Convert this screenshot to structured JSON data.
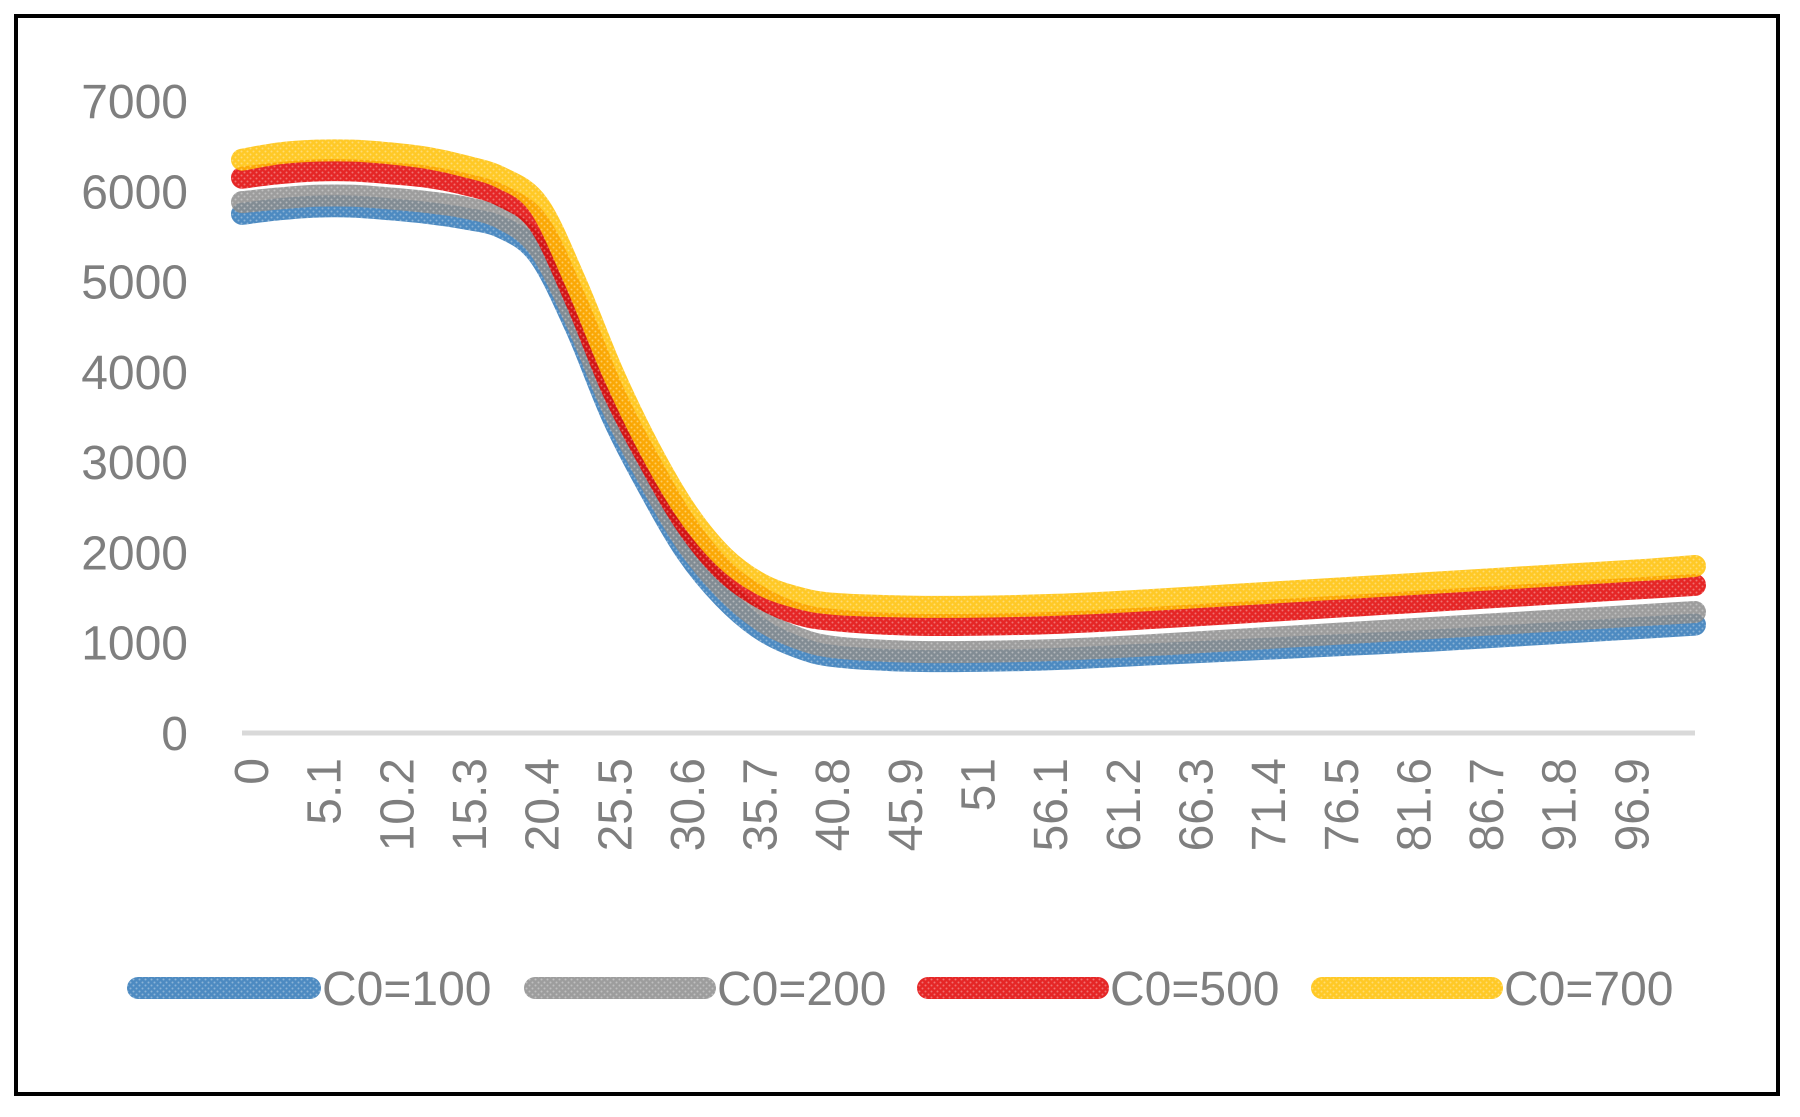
{
  "chart_data": {
    "type": "line",
    "title": "",
    "xlabel": "",
    "ylabel": "",
    "ylim": [
      0,
      7000
    ],
    "yticks": [
      0,
      1000,
      2000,
      3000,
      4000,
      5000,
      6000,
      7000
    ],
    "x_tick_labels": [
      "0",
      "5.1",
      "10.2",
      "15.3",
      "20.4",
      "25.5",
      "30.6",
      "35.7",
      "40.8",
      "45.9",
      "51",
      "56.1",
      "61.2",
      "66.3",
      "71.4",
      "76.5",
      "81.6",
      "86.7",
      "91.8",
      "96.9"
    ],
    "xlim": [
      0,
      100
    ],
    "grid": false,
    "legend_position": "bottom",
    "x": [
      0,
      2.55,
      5.1,
      7.65,
      10.2,
      12.75,
      15.3,
      17.85,
      20.4,
      22.95,
      25.5,
      28.05,
      30.6,
      33.15,
      35.7,
      38.25,
      40.8,
      45.9,
      51,
      56.1,
      61.2,
      66.3,
      71.4,
      76.5,
      81.6,
      86.7,
      91.8,
      96.9,
      100
    ],
    "series": [
      {
        "name": "C0=100",
        "color": "#2e75b6",
        "values": [
          5750,
          5800,
          5830,
          5830,
          5800,
          5760,
          5700,
          5600,
          5300,
          4500,
          3500,
          2700,
          2000,
          1500,
          1150,
          950,
          850,
          800,
          800,
          820,
          860,
          900,
          940,
          980,
          1020,
          1070,
          1120,
          1170,
          1200
        ]
      },
      {
        "name": "C0=200",
        "color": "#8c8c8c",
        "values": [
          5880,
          5920,
          5950,
          5950,
          5920,
          5880,
          5820,
          5700,
          5380,
          4580,
          3600,
          2800,
          2100,
          1600,
          1250,
          1050,
          950,
          900,
          900,
          920,
          960,
          1010,
          1060,
          1110,
          1160,
          1210,
          1260,
          1310,
          1340
        ]
      },
      {
        "name": "C0=500",
        "color": "#e00000",
        "values": [
          6150,
          6200,
          6230,
          6230,
          6200,
          6160,
          6080,
          5950,
          5650,
          4800,
          3800,
          3000,
          2300,
          1800,
          1500,
          1320,
          1250,
          1200,
          1200,
          1220,
          1260,
          1310,
          1360,
          1410,
          1460,
          1510,
          1560,
          1610,
          1640
        ]
      },
      {
        "name": "C0=700",
        "color": "#ffc000",
        "values": [
          6350,
          6420,
          6450,
          6450,
          6420,
          6370,
          6280,
          6150,
          5850,
          5000,
          4000,
          3150,
          2450,
          1950,
          1650,
          1500,
          1430,
          1400,
          1400,
          1420,
          1460,
          1510,
          1560,
          1610,
          1660,
          1710,
          1760,
          1810,
          1850
        ]
      }
    ]
  }
}
